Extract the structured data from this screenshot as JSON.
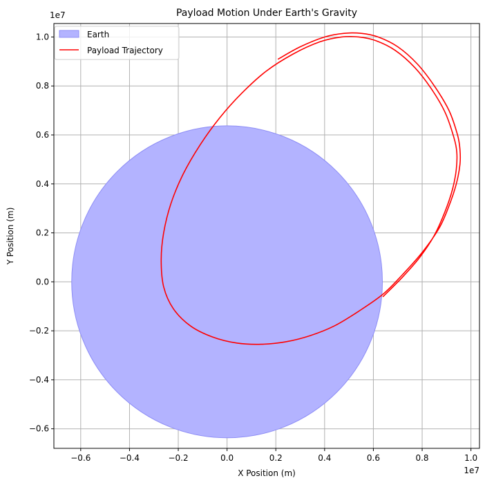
{
  "chart_data": {
    "type": "line",
    "title": "Payload Motion Under Earth's Gravity",
    "xlabel": "X Position (m)",
    "ylabel": "Y Position (m)",
    "x_offset_text": "1e7",
    "y_offset_text": "1e7",
    "xlim": [
      -0.71,
      1.035
    ],
    "ylim": [
      -0.68,
      1.055
    ],
    "x_ticks": [
      -0.6,
      -0.4,
      -0.2,
      0.0,
      0.2,
      0.4,
      0.6,
      0.8,
      1.0
    ],
    "x_tick_labels": [
      "−0.6",
      "−0.4",
      "−0.2",
      "0.0",
      "0.2",
      "0.4",
      "0.6",
      "0.8",
      "1.0"
    ],
    "y_ticks": [
      -0.6,
      -0.4,
      -0.2,
      0.0,
      0.2,
      0.4,
      0.6,
      0.8,
      1.0
    ],
    "y_tick_labels": [
      "−0.6",
      "−0.4",
      "−0.2",
      "0.0",
      "0.2",
      "0.4",
      "0.6",
      "0.8",
      "1.0"
    ],
    "grid": true,
    "legend_position": "upper-left",
    "legend": [
      {
        "label": "Earth",
        "kind": "patch",
        "color": "#b3b3ff",
        "edge": "#8c8cf5"
      },
      {
        "label": "Payload Trajectory",
        "kind": "line",
        "color": "#ff0000"
      }
    ],
    "earth": {
      "center": [
        0.0,
        0.0
      ],
      "radius": 0.637,
      "fill": "#b3b3ff",
      "edge": "#8c8cf5"
    },
    "series": [
      {
        "name": "Payload Trajectory",
        "color": "#ff0000",
        "points": [
          [
            0.21,
            0.91
          ],
          [
            0.3,
            0.96
          ],
          [
            0.4,
            1.0
          ],
          [
            0.48,
            1.015
          ],
          [
            0.55,
            1.015
          ],
          [
            0.62,
            1.0
          ],
          [
            0.7,
            0.96
          ],
          [
            0.78,
            0.89
          ],
          [
            0.85,
            0.8
          ],
          [
            0.91,
            0.7
          ],
          [
            0.945,
            0.6
          ],
          [
            0.955,
            0.54
          ],
          [
            0.955,
            0.48
          ],
          [
            0.94,
            0.4
          ],
          [
            0.91,
            0.31
          ],
          [
            0.87,
            0.22
          ],
          [
            0.8,
            0.12
          ],
          [
            0.72,
            0.03
          ],
          [
            0.64,
            -0.05
          ],
          [
            0.54,
            -0.12
          ],
          [
            0.44,
            -0.18
          ],
          [
            0.34,
            -0.22
          ],
          [
            0.24,
            -0.245
          ],
          [
            0.14,
            -0.255
          ],
          [
            0.04,
            -0.25
          ],
          [
            -0.06,
            -0.225
          ],
          [
            -0.15,
            -0.18
          ],
          [
            -0.22,
            -0.11
          ],
          [
            -0.26,
            -0.02
          ],
          [
            -0.27,
            0.09
          ],
          [
            -0.26,
            0.2
          ],
          [
            -0.23,
            0.32
          ],
          [
            -0.18,
            0.44
          ],
          [
            -0.11,
            0.56
          ],
          [
            -0.03,
            0.67
          ],
          [
            0.06,
            0.77
          ],
          [
            0.16,
            0.86
          ],
          [
            0.27,
            0.93
          ],
          [
            0.38,
            0.98
          ],
          [
            0.47,
            1.0
          ],
          [
            0.54,
            1.0
          ],
          [
            0.61,
            0.985
          ],
          [
            0.69,
            0.945
          ],
          [
            0.77,
            0.875
          ],
          [
            0.84,
            0.785
          ],
          [
            0.895,
            0.69
          ],
          [
            0.93,
            0.59
          ],
          [
            0.942,
            0.53
          ],
          [
            0.94,
            0.46
          ],
          [
            0.925,
            0.38
          ],
          [
            0.895,
            0.29
          ],
          [
            0.85,
            0.19
          ],
          [
            0.79,
            0.1
          ],
          [
            0.72,
            0.02
          ],
          [
            0.64,
            -0.06
          ]
        ]
      }
    ]
  }
}
